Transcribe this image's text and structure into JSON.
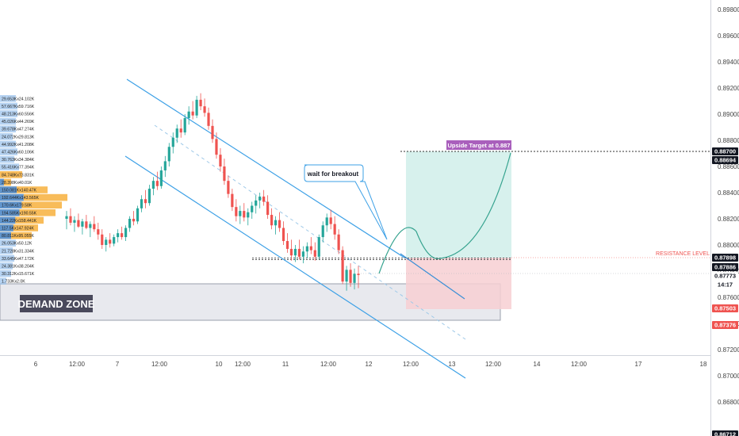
{
  "chart_data": {
    "type": "candlestick",
    "instrument_price_axis": {
      "ticks": [
        "0.89800",
        "0.89600",
        "0.89400",
        "0.89200",
        "0.89000",
        "0.88800",
        "0.88600",
        "0.88400",
        "0.88200",
        "0.88000",
        "0.87800",
        "0.87600",
        "0.87400",
        "0.87200",
        "0.87000",
        "0.86800"
      ],
      "range": [
        0.867,
        0.899
      ]
    },
    "time_axis": {
      "ticks": [
        "6",
        "12:00",
        "7",
        "12:00",
        "10",
        "12:00",
        "11",
        "12:00",
        "12",
        "12:00",
        "13",
        "12:00",
        "14",
        "12:00",
        "17",
        "18"
      ]
    },
    "price_badges": [
      {
        "value": "0.88700",
        "color": "#131722",
        "text_color": "#ffffff"
      },
      {
        "value": "0.88694",
        "color": "#131722",
        "text_color": "#ffffff"
      },
      {
        "value": "0.87898",
        "color": "#131722",
        "text_color": "#ffffff"
      },
      {
        "value": "0.87886",
        "color": "#131722",
        "text_color": "#ffffff"
      },
      {
        "value": "0.87773",
        "color": "#ffffff",
        "text_color": "#131722"
      },
      {
        "value": "14:17",
        "color": "#ffffff",
        "text_color": "#131722"
      },
      {
        "value": "0.87503",
        "color": "#ef5350",
        "text_color": "#ffffff"
      },
      {
        "value": "0.87376",
        "color": "#ef5350",
        "text_color": "#ffffff"
      },
      {
        "value": "0.86712",
        "color": "#131722",
        "text_color": "#ffffff"
      }
    ],
    "annotations": {
      "upside_target": "Upside Target at 0.887",
      "resistance": "RESISTANCE LEVEL",
      "wait": "wait for breakout",
      "demand_zone": "DEMAND ZONE"
    },
    "volume_profile_labels": [
      "29.653Kx24.102K",
      "57.667Kx59.716K",
      "48.213Kx60.556K",
      "45.026Kx44.269K",
      "39.678Kx47.274K",
      "24.072Kx29.813K",
      "44.992Kx41.208K",
      "47.426Kx60.106K",
      "30.763Kx34.384K",
      "55.416Kx77.394K",
      "84.748Kx73.831K",
      "28.398Kx40.01K",
      "150.081Kx140.47K",
      "192.644Kx143.565K",
      "170.6Kx179.58K",
      "194.585Kx190.55K",
      "144.22Kx158.441K",
      "117.5Kx147.924K",
      "80.811Kx95.055K",
      "26.053Kx50.12K",
      "21.728Kx31.334K",
      "33.645Kx47.172K",
      "24.381Kx38.204K",
      "30.312Kx15.671K",
      "1.733Kx2.0K"
    ],
    "candles": [
      {
        "o": 0.882,
        "h": 0.8826,
        "l": 0.8812,
        "c": 0.8822
      },
      {
        "o": 0.8822,
        "h": 0.8828,
        "l": 0.8815,
        "c": 0.8817
      },
      {
        "o": 0.8817,
        "h": 0.8822,
        "l": 0.881,
        "c": 0.8819
      },
      {
        "o": 0.8819,
        "h": 0.8824,
        "l": 0.8813,
        "c": 0.8814
      },
      {
        "o": 0.8814,
        "h": 0.882,
        "l": 0.8808,
        "c": 0.8818
      },
      {
        "o": 0.8818,
        "h": 0.8823,
        "l": 0.8812,
        "c": 0.8813
      },
      {
        "o": 0.8813,
        "h": 0.8818,
        "l": 0.8806,
        "c": 0.8816
      },
      {
        "o": 0.8816,
        "h": 0.8822,
        "l": 0.881,
        "c": 0.8812
      },
      {
        "o": 0.8812,
        "h": 0.8817,
        "l": 0.8804,
        "c": 0.8808
      },
      {
        "o": 0.8808,
        "h": 0.8812,
        "l": 0.8797,
        "c": 0.88
      },
      {
        "o": 0.88,
        "h": 0.8806,
        "l": 0.8795,
        "c": 0.8804
      },
      {
        "o": 0.8804,
        "h": 0.8809,
        "l": 0.8798,
        "c": 0.8801
      },
      {
        "o": 0.8801,
        "h": 0.8808,
        "l": 0.8799,
        "c": 0.8806
      },
      {
        "o": 0.8806,
        "h": 0.8812,
        "l": 0.8802,
        "c": 0.8809
      },
      {
        "o": 0.8809,
        "h": 0.8814,
        "l": 0.8804,
        "c": 0.8806
      },
      {
        "o": 0.8806,
        "h": 0.8815,
        "l": 0.8803,
        "c": 0.8813
      },
      {
        "o": 0.8813,
        "h": 0.8822,
        "l": 0.881,
        "c": 0.882
      },
      {
        "o": 0.882,
        "h": 0.8826,
        "l": 0.8815,
        "c": 0.8818
      },
      {
        "o": 0.8818,
        "h": 0.883,
        "l": 0.8816,
        "c": 0.8828
      },
      {
        "o": 0.8828,
        "h": 0.8838,
        "l": 0.8825,
        "c": 0.8835
      },
      {
        "o": 0.8835,
        "h": 0.8842,
        "l": 0.8828,
        "c": 0.8832
      },
      {
        "o": 0.8832,
        "h": 0.8846,
        "l": 0.883,
        "c": 0.8843
      },
      {
        "o": 0.8843,
        "h": 0.8852,
        "l": 0.8838,
        "c": 0.8849
      },
      {
        "o": 0.8849,
        "h": 0.8856,
        "l": 0.8842,
        "c": 0.8845
      },
      {
        "o": 0.8845,
        "h": 0.886,
        "l": 0.8843,
        "c": 0.8857
      },
      {
        "o": 0.8857,
        "h": 0.8868,
        "l": 0.8852,
        "c": 0.8864
      },
      {
        "o": 0.8864,
        "h": 0.8878,
        "l": 0.886,
        "c": 0.8875
      },
      {
        "o": 0.8875,
        "h": 0.8886,
        "l": 0.887,
        "c": 0.8882
      },
      {
        "o": 0.8882,
        "h": 0.8892,
        "l": 0.8878,
        "c": 0.8889
      },
      {
        "o": 0.8889,
        "h": 0.8896,
        "l": 0.8882,
        "c": 0.8886
      },
      {
        "o": 0.8886,
        "h": 0.89,
        "l": 0.8884,
        "c": 0.8897
      },
      {
        "o": 0.8897,
        "h": 0.8906,
        "l": 0.8892,
        "c": 0.8902
      },
      {
        "o": 0.8902,
        "h": 0.891,
        "l": 0.8896,
        "c": 0.8899
      },
      {
        "o": 0.8899,
        "h": 0.8914,
        "l": 0.8897,
        "c": 0.8911
      },
      {
        "o": 0.8911,
        "h": 0.8916,
        "l": 0.8903,
        "c": 0.8906
      },
      {
        "o": 0.8906,
        "h": 0.8912,
        "l": 0.8898,
        "c": 0.8901
      },
      {
        "o": 0.8901,
        "h": 0.8905,
        "l": 0.8888,
        "c": 0.8891
      },
      {
        "o": 0.8891,
        "h": 0.8896,
        "l": 0.8878,
        "c": 0.8881
      },
      {
        "o": 0.8881,
        "h": 0.8886,
        "l": 0.8866,
        "c": 0.8869
      },
      {
        "o": 0.8869,
        "h": 0.8874,
        "l": 0.8856,
        "c": 0.886
      },
      {
        "o": 0.886,
        "h": 0.8866,
        "l": 0.8846,
        "c": 0.8849
      },
      {
        "o": 0.8849,
        "h": 0.8853,
        "l": 0.8836,
        "c": 0.8839
      },
      {
        "o": 0.8839,
        "h": 0.8843,
        "l": 0.8826,
        "c": 0.8829
      },
      {
        "o": 0.8829,
        "h": 0.8835,
        "l": 0.8818,
        "c": 0.8822
      },
      {
        "o": 0.8822,
        "h": 0.883,
        "l": 0.8816,
        "c": 0.8826
      },
      {
        "o": 0.8826,
        "h": 0.8832,
        "l": 0.8818,
        "c": 0.8821
      },
      {
        "o": 0.8821,
        "h": 0.8828,
        "l": 0.8815,
        "c": 0.8825
      },
      {
        "o": 0.8825,
        "h": 0.8833,
        "l": 0.882,
        "c": 0.883
      },
      {
        "o": 0.883,
        "h": 0.8838,
        "l": 0.8824,
        "c": 0.8834
      },
      {
        "o": 0.8834,
        "h": 0.884,
        "l": 0.8828,
        "c": 0.8837
      },
      {
        "o": 0.8837,
        "h": 0.8842,
        "l": 0.883,
        "c": 0.8833
      },
      {
        "o": 0.8833,
        "h": 0.8838,
        "l": 0.882,
        "c": 0.8823
      },
      {
        "o": 0.8823,
        "h": 0.8828,
        "l": 0.8812,
        "c": 0.8815
      },
      {
        "o": 0.8815,
        "h": 0.8822,
        "l": 0.8808,
        "c": 0.8819
      },
      {
        "o": 0.8819,
        "h": 0.8825,
        "l": 0.881,
        "c": 0.8813
      },
      {
        "o": 0.8813,
        "h": 0.8818,
        "l": 0.88,
        "c": 0.8803
      },
      {
        "o": 0.8803,
        "h": 0.8809,
        "l": 0.8794,
        "c": 0.8797
      },
      {
        "o": 0.8797,
        "h": 0.8804,
        "l": 0.8788,
        "c": 0.8792
      },
      {
        "o": 0.8792,
        "h": 0.88,
        "l": 0.8787,
        "c": 0.8797
      },
      {
        "o": 0.8797,
        "h": 0.8804,
        "l": 0.8789,
        "c": 0.8791
      },
      {
        "o": 0.8791,
        "h": 0.8799,
        "l": 0.8786,
        "c": 0.8795
      },
      {
        "o": 0.8795,
        "h": 0.8802,
        "l": 0.879,
        "c": 0.8799
      },
      {
        "o": 0.8799,
        "h": 0.8806,
        "l": 0.8793,
        "c": 0.8796
      },
      {
        "o": 0.8796,
        "h": 0.8802,
        "l": 0.8788,
        "c": 0.8791
      },
      {
        "o": 0.8791,
        "h": 0.8808,
        "l": 0.8789,
        "c": 0.8806
      },
      {
        "o": 0.8806,
        "h": 0.8818,
        "l": 0.8802,
        "c": 0.8815
      },
      {
        "o": 0.8815,
        "h": 0.8824,
        "l": 0.881,
        "c": 0.8821
      },
      {
        "o": 0.8821,
        "h": 0.8827,
        "l": 0.8812,
        "c": 0.8816
      },
      {
        "o": 0.8816,
        "h": 0.8822,
        "l": 0.8804,
        "c": 0.8808
      },
      {
        "o": 0.8808,
        "h": 0.8812,
        "l": 0.8793,
        "c": 0.8796
      },
      {
        "o": 0.8796,
        "h": 0.8799,
        "l": 0.877,
        "c": 0.8772
      },
      {
        "o": 0.8772,
        "h": 0.8784,
        "l": 0.8765,
        "c": 0.8781
      },
      {
        "o": 0.8781,
        "h": 0.8786,
        "l": 0.8768,
        "c": 0.8771
      },
      {
        "o": 0.8771,
        "h": 0.8782,
        "l": 0.8766,
        "c": 0.8778
      },
      {
        "o": 0.8778,
        "h": 0.8784,
        "l": 0.8767,
        "c": 0.8777
      }
    ]
  }
}
